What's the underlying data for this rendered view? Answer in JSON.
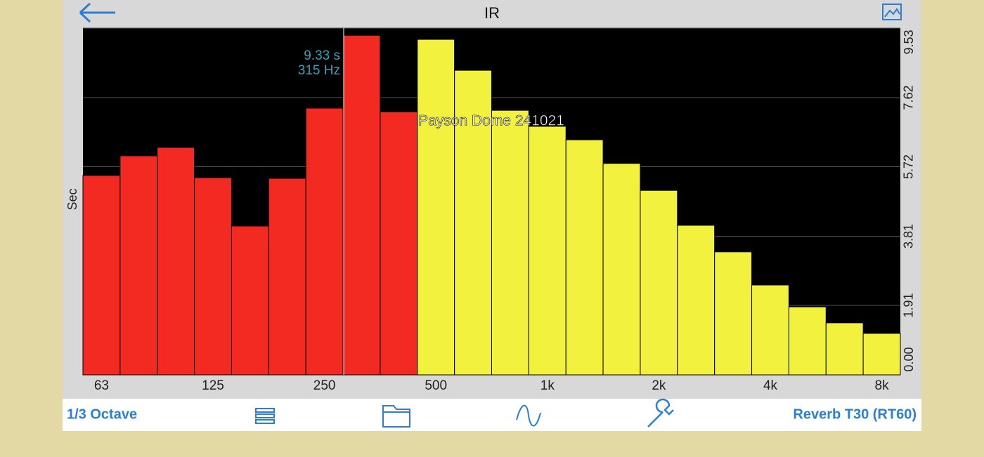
{
  "header": {
    "title": "IR"
  },
  "chart_data": {
    "type": "bar",
    "y_label": "Sec",
    "annotations": [
      "9.33 s",
      "315 Hz",
      "Payson Dome 241021"
    ],
    "categories": [
      "63",
      null,
      null,
      "125",
      null,
      null,
      "250",
      null,
      null,
      "500",
      null,
      null,
      "1k",
      null,
      null,
      "2k",
      null,
      null,
      "4k",
      null,
      null,
      "8k"
    ],
    "values": [
      5.48,
      6.02,
      6.25,
      5.42,
      4.09,
      5.4,
      7.33,
      9.33,
      7.23,
      9.22,
      8.37,
      7.27,
      6.83,
      6.46,
      5.81,
      5.07,
      4.11,
      3.38,
      2.47,
      1.87,
      1.43,
      1.14
    ],
    "colors": [
      "#f22a22",
      "#f22a22",
      "#f22a22",
      "#f22a22",
      "#f22a22",
      "#f22a22",
      "#f22a22",
      "#f22a22",
      "#f22a22",
      "#f2f23e",
      "#f2f23e",
      "#f2f23e",
      "#f2f23e",
      "#f2f23e",
      "#f2f23e",
      "#f2f23e",
      "#f2f23e",
      "#f2f23e",
      "#f2f23e",
      "#f2f23e",
      "#f2f23e",
      "#f2f23e"
    ],
    "ylim": [
      0,
      9.53
    ],
    "yticks": [
      {
        "value": 0,
        "label": "0.00"
      },
      1.91,
      3.81,
      5.72,
      7.62,
      9.53
    ],
    "grid": true
  },
  "toolbar": {
    "left": "1/3 Octave",
    "right": "Reverb T30 (RT60)"
  }
}
